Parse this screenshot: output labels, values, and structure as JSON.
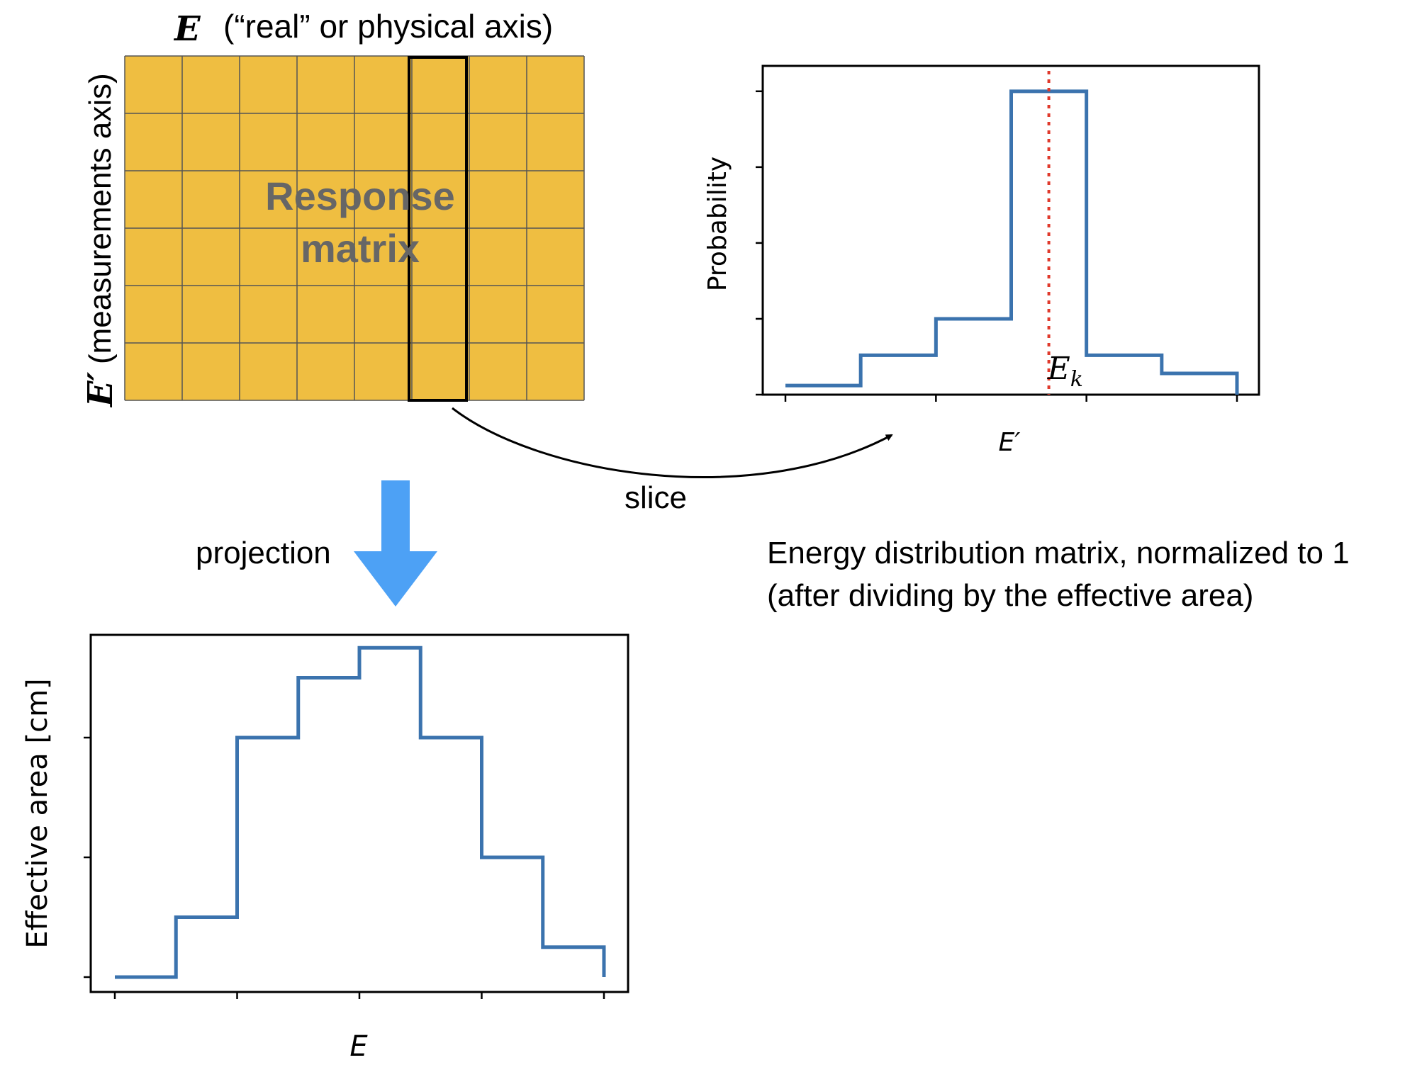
{
  "colors": {
    "matrix_fill": "#EFBE41",
    "matrix_grid": "#555555",
    "matrix_label": "#666666",
    "step_line": "#3B73AE",
    "energy_marker": "#E0392B",
    "projection_arrow": "#4DA1F5",
    "axis": "#000000"
  },
  "matrix": {
    "top_axis_symbol": "E",
    "top_axis_caption": "(“real” or physical axis)",
    "side_axis_symbol": "E′",
    "side_axis_caption": "(measurements axis)",
    "label_line1": "Response",
    "label_line2": "matrix",
    "columns": 8,
    "rows": 6,
    "highlighted_column": 5
  },
  "arrows": {
    "slice_label": "slice",
    "slice_icon": "curved-arrow",
    "projection_label": "projection",
    "projection_icon": "down-arrow"
  },
  "caption": {
    "line1": "Energy distribution matrix, normalized to 1",
    "line2": "(after dividing by the effective area)"
  },
  "chart_data": [
    {
      "type": "step",
      "title": "",
      "xlabel": "E′",
      "ylabel": "Probability",
      "tick_labels_shown": false,
      "bin_values": [
        0.03,
        0.13,
        0.25,
        1.0,
        0.13,
        0.07
      ],
      "ylim": [
        0,
        1.1
      ],
      "marker": {
        "label_symbol": "E",
        "label_subscript": "k",
        "x": 3.5,
        "style": "dotted",
        "color": "#E0392B"
      }
    },
    {
      "type": "step",
      "title": "",
      "xlabel": "E",
      "ylabel": "Effective area [cm]",
      "tick_labels_shown": false,
      "bin_values": [
        0.0,
        0.2,
        0.8,
        1.0,
        1.1,
        0.8,
        0.4,
        0.1
      ],
      "ylim": [
        0,
        1.2
      ]
    }
  ]
}
